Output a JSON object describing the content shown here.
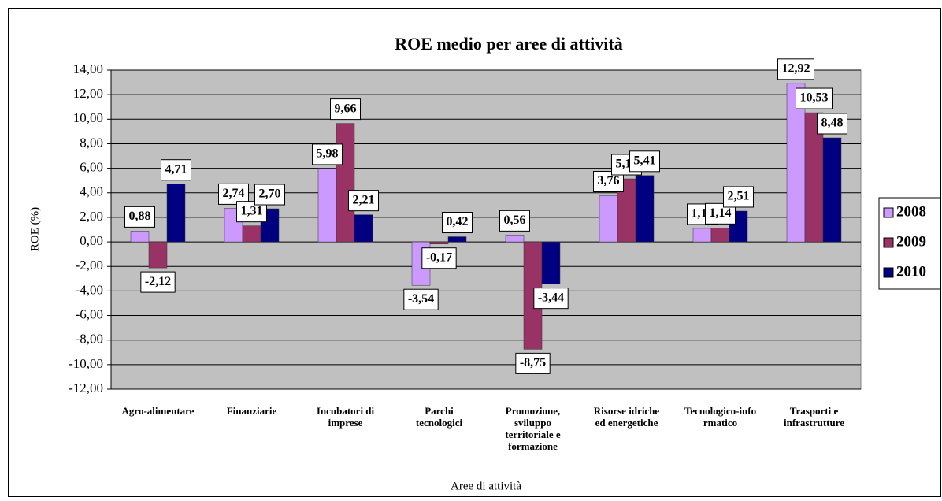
{
  "chart_data": {
    "type": "bar",
    "title": "ROE medio per aree di attività",
    "x_label": "Aree di attività",
    "y_label": "ROE (%)",
    "categories": [
      "Agro-alimentare",
      "Finanziarie",
      "Incubatori di\nimprese",
      "Parchi\ntecnologici",
      "Promozione,\nsviluppo\nterritoriale e\nformazione",
      "Risorse idriche\ned energetiche",
      "Tecnologico-info\nrmatico",
      "Trasporti e\ninfrastrutture"
    ],
    "series": [
      {
        "name": "2008",
        "color": "#cc99ff",
        "values": [
          0.88,
          2.74,
          5.98,
          -3.54,
          0.56,
          3.76,
          1.1,
          12.92
        ],
        "value_labels": [
          "0,88",
          "2,74",
          "5,98",
          "-3,54",
          "0,56",
          "3,76",
          "1,10",
          "12,92"
        ]
      },
      {
        "name": "2009",
        "color": "#993366",
        "values": [
          -2.12,
          1.31,
          9.66,
          -0.17,
          -8.75,
          5.14,
          1.14,
          10.53
        ],
        "value_labels": [
          "-2,12",
          "1,31",
          "9,66",
          "-0,17",
          "-8,75",
          "5,14",
          "1,14",
          "10,53"
        ]
      },
      {
        "name": "2010",
        "color": "#000080",
        "values": [
          4.71,
          2.7,
          2.21,
          0.42,
          -3.44,
          5.41,
          2.51,
          8.48
        ],
        "value_labels": [
          "4,71",
          "2,70",
          "2,21",
          "0,42",
          "-3,44",
          "5,41",
          "2,51",
          "8,48"
        ]
      }
    ],
    "ylim": [
      -12,
      14
    ],
    "yticks": [
      {
        "value": -12,
        "label": "-12,00"
      },
      {
        "value": -10,
        "label": "-10,00"
      },
      {
        "value": -8,
        "label": "-8,00"
      },
      {
        "value": -6,
        "label": "-6,00"
      },
      {
        "value": -4,
        "label": "-4,00"
      },
      {
        "value": -2,
        "label": "-2,00"
      },
      {
        "value": 0,
        "label": "0,00"
      },
      {
        "value": 2,
        "label": "2,00"
      },
      {
        "value": 4,
        "label": "4,00"
      },
      {
        "value": 6,
        "label": "6,00"
      },
      {
        "value": 8,
        "label": "8,00"
      },
      {
        "value": 10,
        "label": "10,00"
      },
      {
        "value": 12,
        "label": "12,00"
      },
      {
        "value": 14,
        "label": "14,00"
      }
    ],
    "grid": true,
    "legend": "right",
    "plot_background": "#c0c0c0"
  }
}
